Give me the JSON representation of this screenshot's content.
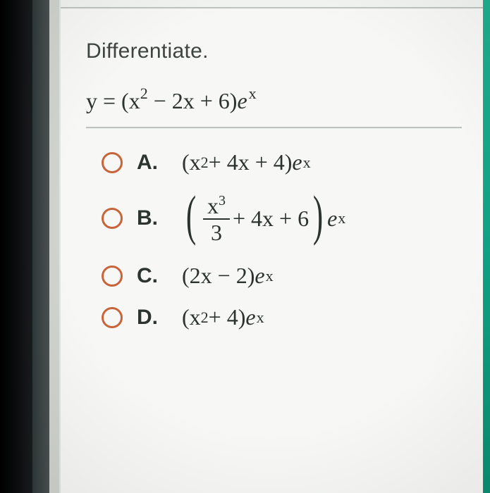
{
  "question": {
    "prompt": "Differentiate.",
    "equation_html": "y = (x<span class='sup'>2</span> − 2x + 6)<span class='eit'>e</span><span class='spx'>x</span>"
  },
  "options": [
    {
      "letter": "A.",
      "math_html": "(x<span class='sup'>2</span> + 4x + 4)<span class='eit'>e</span><span class='spx'>x</span>"
    },
    {
      "letter": "B.",
      "math_html": "<span class='bigparen'>(</span><span class='frac'><span class='num'>x<span class='sup'>3</span></span><span class='den'>3</span></span> + 4x + 6<span class='bigparen'>)</span><span class='eit'>e</span><span class='spx'>x</span>"
    },
    {
      "letter": "C.",
      "math_html": "(2x − 2)<span class='eit'>e</span><span class='spx'>x</span>"
    },
    {
      "letter": "D.",
      "math_html": "(x<span class='sup'>2</span> + 4)<span class='eit'>e</span><span class='spx'>x</span>"
    }
  ],
  "style": {
    "radio_border_color": "#c7643a",
    "text_color": "#2c3230",
    "panel_bg": "#f7f8f6",
    "accent_green": "#14a587",
    "divider_color": "#bfc3bf"
  }
}
